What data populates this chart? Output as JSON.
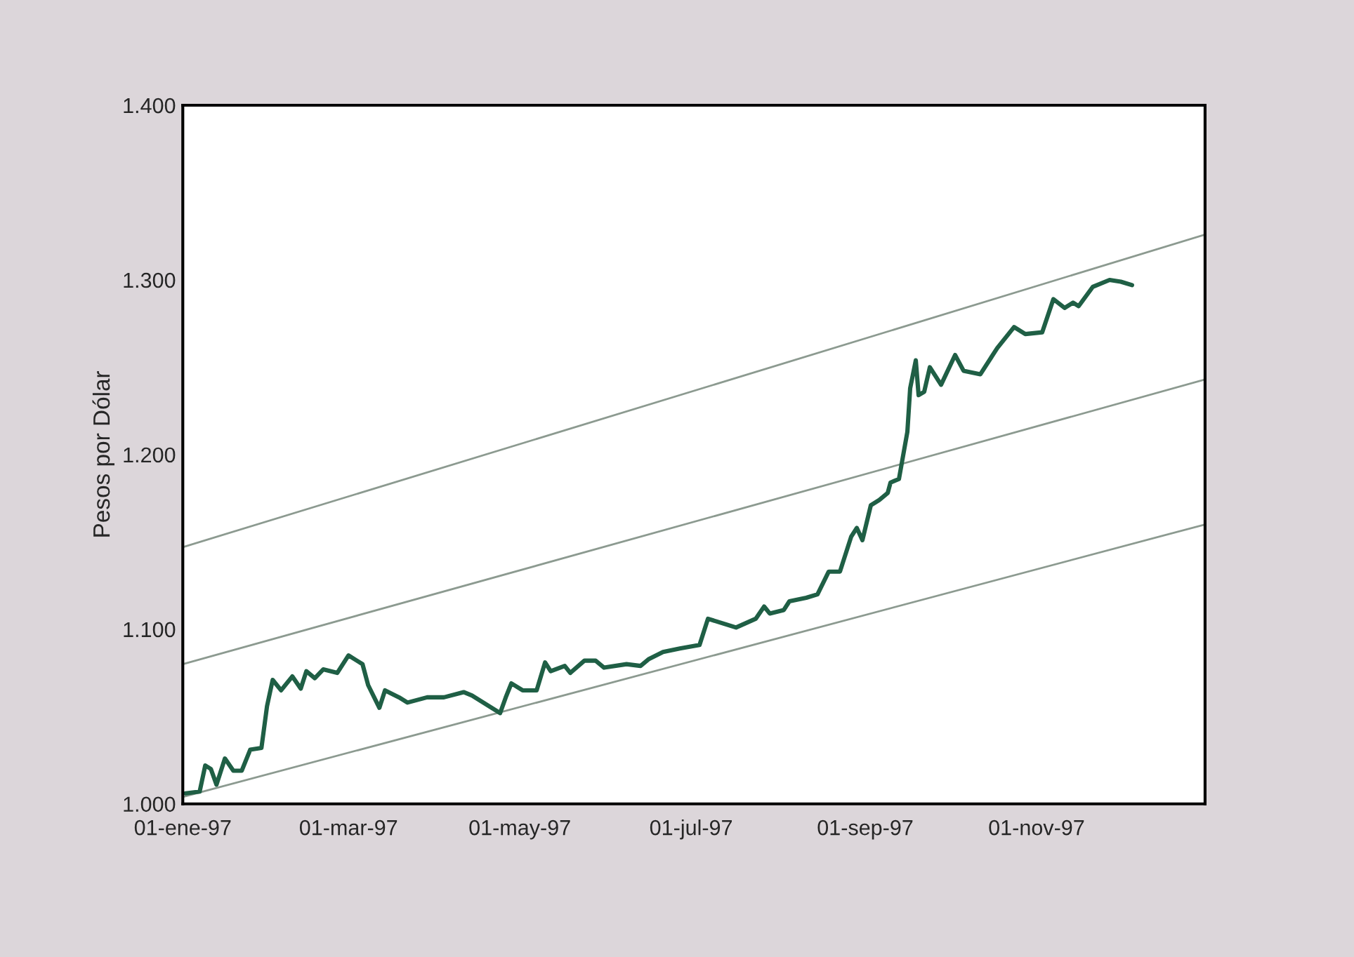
{
  "chart_data": {
    "type": "line",
    "ylabel": "Pesos por Dólar",
    "xlim": [
      "1997-01-01",
      "1997-12-31"
    ],
    "xticks": [
      {
        "value": "1997-01-01",
        "label": "01-ene-97"
      },
      {
        "value": "1997-03-01",
        "label": "01-mar-97"
      },
      {
        "value": "1997-05-01",
        "label": "01-may-97"
      },
      {
        "value": "1997-07-01",
        "label": "01-jul-97"
      },
      {
        "value": "1997-09-01",
        "label": "01-sep-97"
      },
      {
        "value": "1997-11-01",
        "label": "01-nov-97"
      }
    ],
    "ylim": [
      1000,
      1400
    ],
    "yticks": [
      {
        "value": 1000,
        "label": "1.000"
      },
      {
        "value": 1100,
        "label": "1.100"
      },
      {
        "value": 1200,
        "label": "1.200"
      },
      {
        "value": 1300,
        "label": "1.300"
      },
      {
        "value": 1400,
        "label": "1.400"
      }
    ],
    "grid": false,
    "legend": false,
    "marker": "none",
    "line_style": "solid",
    "series": [
      {
        "color": "#8c9a90",
        "x": [
          "1997-01-01",
          "1997-12-31"
        ],
        "values": [
          1147,
          1326
        ]
      },
      {
        "color": "#8c9a90",
        "x": [
          "1997-01-01",
          "1997-12-31"
        ],
        "values": [
          1080,
          1243
        ]
      },
      {
        "color": "#8c9a90",
        "x": [
          "1997-01-01",
          "1997-12-31"
        ],
        "values": [
          1004,
          1160
        ]
      },
      {
        "color": "#1f5f45",
        "x": [
          "1997-01-02",
          "1997-01-07",
          "1997-01-09",
          "1997-01-11",
          "1997-01-13",
          "1997-01-16",
          "1997-01-19",
          "1997-01-22",
          "1997-01-25",
          "1997-01-29",
          "1997-01-31",
          "1997-02-02",
          "1997-02-05",
          "1997-02-09",
          "1997-02-12",
          "1997-02-14",
          "1997-02-17",
          "1997-02-20",
          "1997-02-25",
          "1997-03-01",
          "1997-03-06",
          "1997-03-08",
          "1997-03-12",
          "1997-03-14",
          "1997-03-19",
          "1997-03-22",
          "1997-03-29",
          "1997-04-04",
          "1997-04-11",
          "1997-04-14",
          "1997-04-17",
          "1997-04-21",
          "1997-04-24",
          "1997-04-26",
          "1997-04-28",
          "1997-05-02",
          "1997-05-07",
          "1997-05-10",
          "1997-05-12",
          "1997-05-17",
          "1997-05-19",
          "1997-05-24",
          "1997-05-28",
          "1997-05-31",
          "1997-06-08",
          "1997-06-13",
          "1997-06-16",
          "1997-06-21",
          "1997-06-27",
          "1997-07-04",
          "1997-07-07",
          "1997-07-13",
          "1997-07-17",
          "1997-07-24",
          "1997-07-27",
          "1997-07-29",
          "1997-08-03",
          "1997-08-05",
          "1997-08-11",
          "1997-08-15",
          "1997-08-19",
          "1997-08-23",
          "1997-08-27",
          "1997-08-29",
          "1997-08-31",
          "1997-09-03",
          "1997-09-06",
          "1997-09-09",
          "1997-09-10",
          "1997-09-13",
          "1997-09-16",
          "1997-09-17",
          "1997-09-19",
          "1997-09-20",
          "1997-09-22",
          "1997-09-24",
          "1997-09-28",
          "1997-10-03",
          "1997-10-06",
          "1997-10-12",
          "1997-10-16",
          "1997-10-18",
          "1997-10-24",
          "1997-10-28",
          "1997-11-03",
          "1997-11-07",
          "1997-11-11",
          "1997-11-14",
          "1997-11-16",
          "1997-11-21",
          "1997-11-27",
          "1997-12-01",
          "1997-12-05"
        ],
        "values": [
          1006,
          1007,
          1022,
          1020,
          1011,
          1026,
          1019,
          1019,
          1031,
          1032,
          1056,
          1071,
          1065,
          1073,
          1066,
          1076,
          1072,
          1077,
          1075,
          1085,
          1080,
          1068,
          1055,
          1065,
          1061,
          1058,
          1061,
          1061,
          1064,
          1062,
          1059,
          1055,
          1052,
          1061,
          1069,
          1065,
          1065,
          1081,
          1076,
          1079,
          1075,
          1082,
          1082,
          1078,
          1080,
          1079,
          1083,
          1087,
          1089,
          1091,
          1106,
          1103,
          1101,
          1106,
          1113,
          1109,
          1111,
          1116,
          1118,
          1120,
          1133,
          1133,
          1153,
          1158,
          1151,
          1171,
          1174,
          1178,
          1184,
          1186,
          1213,
          1238,
          1254,
          1234,
          1236,
          1250,
          1240,
          1257,
          1248,
          1246,
          1256,
          1261,
          1273,
          1269,
          1270,
          1289,
          1284,
          1287,
          1285,
          1296,
          1300,
          1299,
          1297
        ]
      }
    ]
  }
}
